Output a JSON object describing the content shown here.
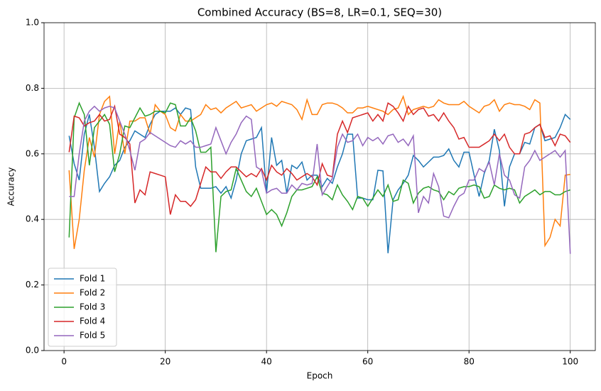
{
  "chart_data": {
    "type": "line",
    "title": "Combined Accuracy (BS=8, LR=0.1, SEQ=30)",
    "x_label": "Epoch",
    "y_label": "Accuracy",
    "x": [
      1,
      2,
      3,
      4,
      5,
      6,
      7,
      8,
      9,
      10,
      11,
      12,
      13,
      14,
      15,
      16,
      17,
      18,
      19,
      20,
      21,
      22,
      23,
      24,
      25,
      26,
      27,
      28,
      29,
      30,
      31,
      32,
      33,
      34,
      35,
      36,
      37,
      38,
      39,
      40,
      41,
      42,
      43,
      44,
      45,
      46,
      47,
      48,
      49,
      50,
      51,
      52,
      53,
      54,
      55,
      56,
      57,
      58,
      59,
      60,
      61,
      62,
      63,
      64,
      65,
      66,
      67,
      68,
      69,
      70,
      71,
      72,
      73,
      74,
      75,
      76,
      77,
      78,
      79,
      80,
      81,
      82,
      83,
      84,
      85,
      86,
      87,
      88,
      89,
      90,
      91,
      92,
      93,
      94,
      95,
      96,
      97,
      98,
      99,
      100
    ],
    "xlim": [
      -3.95,
      104.95
    ],
    "xticks": [
      0,
      20,
      40,
      60,
      80,
      100
    ],
    "ylim": [
      0,
      1
    ],
    "yticks": [
      {
        "value": 0,
        "label": "0.0"
      },
      {
        "value": 0.2,
        "label": "0.2"
      },
      {
        "value": 0.4,
        "label": "0.4"
      },
      {
        "value": 0.6,
        "label": "0.6"
      },
      {
        "value": 0.8,
        "label": "0.8"
      },
      {
        "value": 1,
        "label": "1.0"
      }
    ],
    "grid": true,
    "legend": "lower-left",
    "series": [
      {
        "name": "Fold 1",
        "color": "#1f77b4",
        "values": [
          0.655,
          0.57,
          0.52,
          0.66,
          0.72,
          0.62,
          0.485,
          0.51,
          0.53,
          0.565,
          0.58,
          0.62,
          0.64,
          0.67,
          0.66,
          0.65,
          0.69,
          0.72,
          0.73,
          0.73,
          0.73,
          0.74,
          0.72,
          0.74,
          0.735,
          0.56,
          0.495,
          0.495,
          0.495,
          0.5,
          0.48,
          0.5,
          0.465,
          0.52,
          0.6,
          0.64,
          0.645,
          0.65,
          0.68,
          0.48,
          0.65,
          0.565,
          0.58,
          0.48,
          0.565,
          0.555,
          0.575,
          0.52,
          0.535,
          0.535,
          0.5,
          0.525,
          0.51,
          0.56,
          0.6,
          0.66,
          0.66,
          0.465,
          0.465,
          0.46,
          0.46,
          0.55,
          0.548,
          0.297,
          0.46,
          0.49,
          0.51,
          0.535,
          0.595,
          0.58,
          0.56,
          0.575,
          0.59,
          0.59,
          0.595,
          0.615,
          0.58,
          0.56,
          0.605,
          0.605,
          0.535,
          0.47,
          0.54,
          0.58,
          0.675,
          0.61,
          0.44,
          0.56,
          0.6,
          0.6,
          0.635,
          0.63,
          0.68,
          0.69,
          0.64,
          0.645,
          0.65,
          0.68,
          0.72,
          0.705
        ]
      },
      {
        "name": "Fold 2",
        "color": "#ff7f0e",
        "values": [
          0.55,
          0.31,
          0.4,
          0.55,
          0.65,
          0.59,
          0.72,
          0.76,
          0.775,
          0.6,
          0.7,
          0.6,
          0.7,
          0.7,
          0.71,
          0.71,
          0.66,
          0.75,
          0.73,
          0.72,
          0.68,
          0.67,
          0.72,
          0.7,
          0.7,
          0.71,
          0.72,
          0.75,
          0.735,
          0.74,
          0.725,
          0.74,
          0.75,
          0.76,
          0.74,
          0.745,
          0.75,
          0.73,
          0.74,
          0.75,
          0.755,
          0.745,
          0.76,
          0.755,
          0.75,
          0.735,
          0.705,
          0.765,
          0.72,
          0.72,
          0.75,
          0.755,
          0.755,
          0.75,
          0.74,
          0.725,
          0.725,
          0.74,
          0.74,
          0.745,
          0.74,
          0.735,
          0.73,
          0.72,
          0.735,
          0.74,
          0.775,
          0.72,
          0.735,
          0.74,
          0.745,
          0.74,
          0.745,
          0.765,
          0.755,
          0.75,
          0.75,
          0.75,
          0.76,
          0.745,
          0.735,
          0.725,
          0.745,
          0.75,
          0.765,
          0.73,
          0.75,
          0.755,
          0.75,
          0.75,
          0.745,
          0.735,
          0.765,
          0.755,
          0.32,
          0.345,
          0.4,
          0.38,
          0.535,
          0.537
        ]
      },
      {
        "name": "Fold 3",
        "color": "#2ca02c",
        "values": [
          0.345,
          0.71,
          0.755,
          0.72,
          0.565,
          0.68,
          0.7,
          0.72,
          0.69,
          0.545,
          0.6,
          0.685,
          0.68,
          0.71,
          0.74,
          0.715,
          0.72,
          0.73,
          0.73,
          0.725,
          0.755,
          0.75,
          0.685,
          0.685,
          0.71,
          0.67,
          0.605,
          0.605,
          0.62,
          0.3,
          0.47,
          0.485,
          0.49,
          0.555,
          0.52,
          0.485,
          0.47,
          0.495,
          0.455,
          0.415,
          0.43,
          0.415,
          0.38,
          0.42,
          0.47,
          0.49,
          0.49,
          0.495,
          0.5,
          0.53,
          0.48,
          0.475,
          0.46,
          0.505,
          0.475,
          0.455,
          0.43,
          0.47,
          0.465,
          0.44,
          0.465,
          0.49,
          0.47,
          0.505,
          0.455,
          0.46,
          0.52,
          0.51,
          0.45,
          0.48,
          0.495,
          0.5,
          0.49,
          0.485,
          0.46,
          0.485,
          0.475,
          0.495,
          0.5,
          0.5,
          0.505,
          0.5,
          0.465,
          0.47,
          0.505,
          0.495,
          0.49,
          0.495,
          0.49,
          0.45,
          0.47,
          0.48,
          0.49,
          0.475,
          0.485,
          0.485,
          0.475,
          0.475,
          0.485,
          0.49
        ]
      },
      {
        "name": "Fold 4",
        "color": "#d62728",
        "values": [
          0.605,
          0.715,
          0.71,
          0.685,
          0.695,
          0.7,
          0.72,
          0.7,
          0.705,
          0.745,
          0.66,
          0.65,
          0.63,
          0.45,
          0.49,
          0.475,
          0.545,
          0.54,
          0.535,
          0.53,
          0.415,
          0.475,
          0.455,
          0.455,
          0.44,
          0.46,
          0.51,
          0.56,
          0.545,
          0.545,
          0.525,
          0.545,
          0.56,
          0.56,
          0.545,
          0.53,
          0.54,
          0.53,
          0.555,
          0.52,
          0.565,
          0.545,
          0.535,
          0.555,
          0.54,
          0.52,
          0.53,
          0.54,
          0.53,
          0.505,
          0.57,
          0.535,
          0.53,
          0.66,
          0.7,
          0.665,
          0.71,
          0.715,
          0.72,
          0.725,
          0.7,
          0.72,
          0.7,
          0.755,
          0.745,
          0.725,
          0.7,
          0.745,
          0.72,
          0.735,
          0.74,
          0.715,
          0.72,
          0.7,
          0.725,
          0.7,
          0.68,
          0.645,
          0.65,
          0.62,
          0.62,
          0.62,
          0.63,
          0.64,
          0.66,
          0.64,
          0.66,
          0.62,
          0.6,
          0.6,
          0.66,
          0.665,
          0.68,
          0.69,
          0.65,
          0.655,
          0.625,
          0.66,
          0.655,
          0.635
        ]
      },
      {
        "name": "Fold 5",
        "color": "#9467bd",
        "values": [
          0.47,
          0.47,
          0.6,
          0.7,
          0.73,
          0.745,
          0.73,
          0.74,
          0.745,
          0.74,
          0.7,
          0.66,
          0.61,
          0.55,
          0.635,
          0.645,
          0.665,
          0.655,
          0.645,
          0.635,
          0.625,
          0.62,
          0.64,
          0.63,
          0.64,
          0.62,
          0.62,
          0.625,
          0.63,
          0.68,
          0.64,
          0.6,
          0.635,
          0.66,
          0.695,
          0.715,
          0.705,
          0.56,
          0.55,
          0.48,
          0.49,
          0.495,
          0.48,
          0.48,
          0.505,
          0.49,
          0.51,
          0.505,
          0.51,
          0.63,
          0.475,
          0.5,
          0.525,
          0.62,
          0.66,
          0.635,
          0.64,
          0.66,
          0.625,
          0.65,
          0.64,
          0.65,
          0.63,
          0.655,
          0.66,
          0.635,
          0.645,
          0.625,
          0.655,
          0.42,
          0.47,
          0.45,
          0.54,
          0.5,
          0.41,
          0.405,
          0.44,
          0.47,
          0.48,
          0.52,
          0.52,
          0.555,
          0.545,
          0.575,
          0.505,
          0.6,
          0.535,
          0.52,
          0.475,
          0.465,
          0.56,
          0.58,
          0.61,
          0.58,
          0.59,
          0.6,
          0.61,
          0.59,
          0.61,
          0.295
        ]
      }
    ]
  }
}
